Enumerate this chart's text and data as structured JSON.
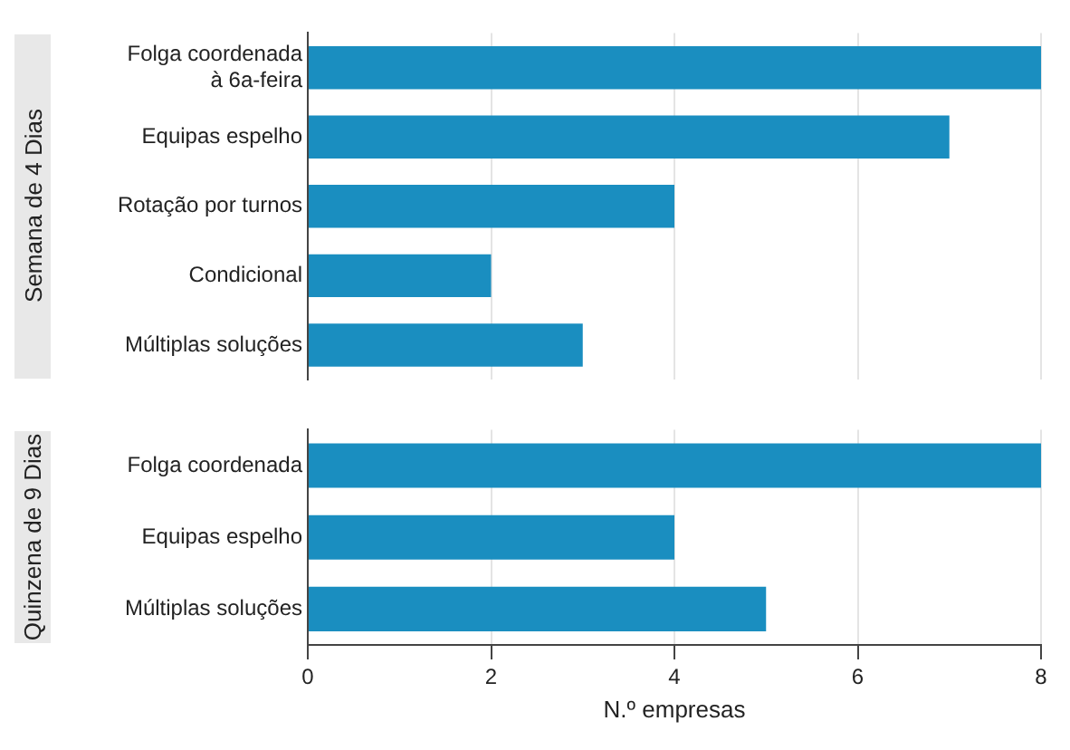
{
  "chart_data": [
    {
      "type": "bar",
      "orientation": "horizontal",
      "ylabel": "Semana de 4 Dias",
      "categories": [
        "Folga coordenada\nà 6a-feira",
        "Equipas espelho",
        "Rotação por turnos",
        "Condicional",
        "Múltiplas soluções"
      ],
      "values": [
        8,
        7,
        4,
        2,
        3
      ],
      "color": "#1a8ec0",
      "xlim": [
        0,
        8
      ],
      "xticks": [
        0,
        2,
        4,
        6,
        8
      ],
      "grid": "x",
      "tick_labels": "y"
    },
    {
      "type": "bar",
      "orientation": "horizontal",
      "ylabel": "Quinzena de 9 Dias",
      "xlabel": "N.º empresas",
      "categories": [
        "Folga coordenada",
        "Equipas espelho",
        "Múltiplas soluções"
      ],
      "values": [
        8,
        4,
        5
      ],
      "color": "#1a8ec0",
      "xlim": [
        0,
        8
      ],
      "xticks": [
        0,
        2,
        4,
        6,
        8
      ],
      "grid": "x"
    }
  ]
}
